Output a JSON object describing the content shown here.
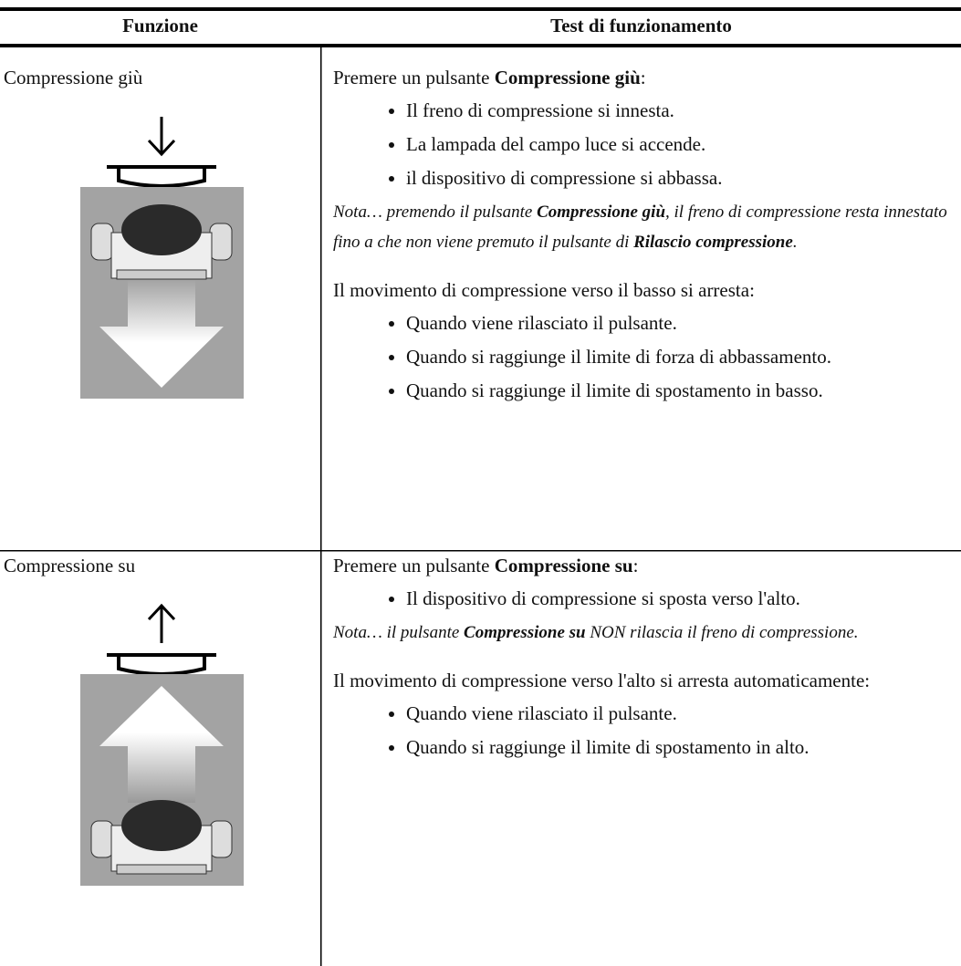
{
  "header": {
    "col1": "Funzione",
    "col2": "Test di funzionamento"
  },
  "rows": [
    {
      "function": "Compressione giù",
      "intro": [
        {
          "text": "Premere un pulsante "
        },
        {
          "text": "Compressione giù",
          "bold": true
        },
        {
          "text": ":"
        }
      ],
      "bullets": [
        "Il freno di compressione si innesta.",
        "La lampada del campo luce si accende.",
        "il dispositivo di compressione si abbassa."
      ],
      "note": [
        {
          "text": "Nota… premendo il pulsante "
        },
        {
          "text": "Compressione giù",
          "bold": true
        },
        {
          "text": ", il freno di compressione resta innestato fino a che non viene premuto il pulsante di "
        },
        {
          "text": "Rilascio compressione",
          "bold": true
        },
        {
          "text": "."
        }
      ],
      "stop_intro": "Il movimento di compressione verso il basso si arresta:",
      "stop_bullets": [
        "Quando viene rilasciato il pulsante.",
        "Quando si raggiunge il limite di forza di abbassamento.",
        "Quando si raggiunge il limite di spostamento in basso."
      ]
    },
    {
      "function": "Compressione su",
      "intro": [
        {
          "text": "Premere un pulsante "
        },
        {
          "text": "Compressione su",
          "bold": true
        },
        {
          "text": ":"
        }
      ],
      "bullets": [
        "Il dispositivo di compressione si sposta verso l'alto."
      ],
      "note": [
        {
          "text": "Nota… il pulsante "
        },
        {
          "text": "Compressione su",
          "bold": true
        },
        {
          "text": " NON rilascia il freno di compressione."
        }
      ],
      "stop_intro": "Il movimento di compressione verso l'alto si arresta automaticamente:",
      "stop_bullets": [
        "Quando viene rilasciato il pulsante.",
        "Quando si raggiunge il limite di spostamento in alto."
      ]
    }
  ]
}
